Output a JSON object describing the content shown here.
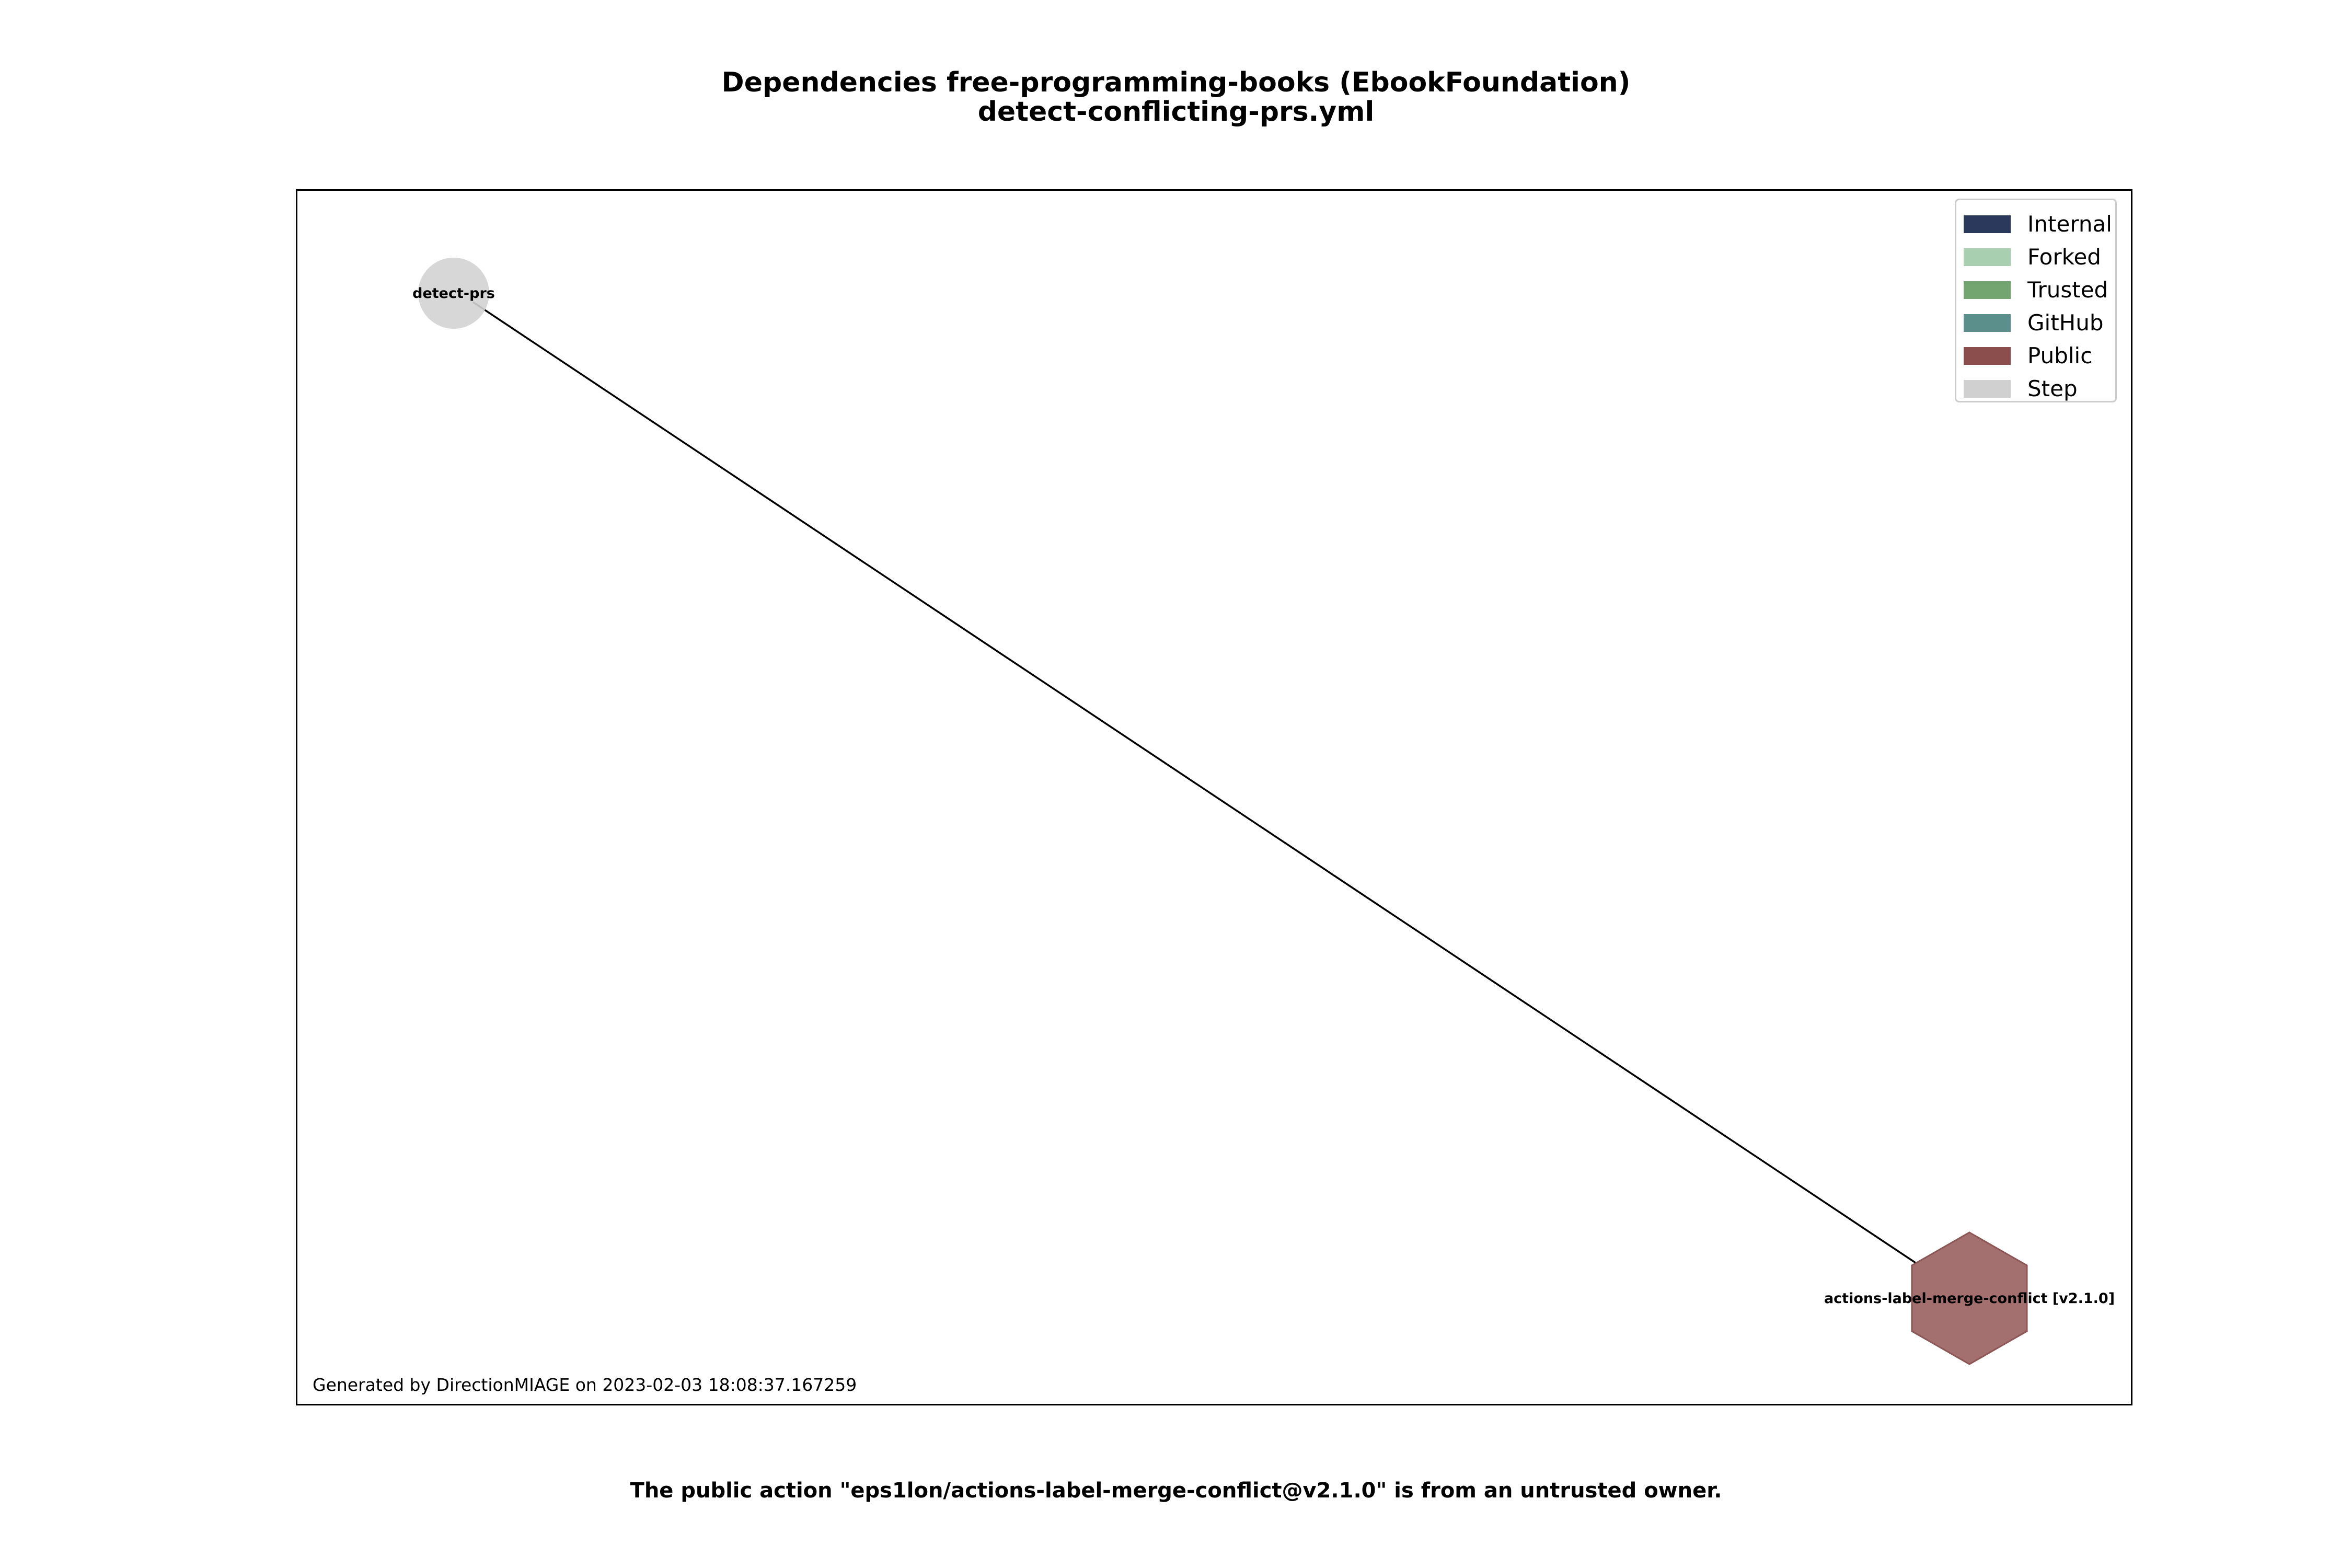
{
  "title": {
    "line1": "Dependencies free-programming-books (EbookFoundation)",
    "line2": "detect-conflicting-prs.yml"
  },
  "legend": {
    "items": [
      {
        "label": "Internal",
        "color": "#2b3a5c"
      },
      {
        "label": "Forked",
        "color": "#a9cfb1"
      },
      {
        "label": "Trusted",
        "color": "#72a56f"
      },
      {
        "label": "GitHub",
        "color": "#5b8f8c"
      },
      {
        "label": "Public",
        "color": "#8c4d4d"
      },
      {
        "label": "Step",
        "color": "#d0d0d0"
      }
    ]
  },
  "nodes": [
    {
      "id": "detect-prs",
      "label": "detect-prs",
      "kind": "Step",
      "shape": "circle",
      "color": "#d3d3d3"
    },
    {
      "id": "actions-label-merge-conflict",
      "label": "actions-label-merge-conflict [v2.1.0]",
      "kind": "Public",
      "shape": "hexagon",
      "color": "#a36f6f"
    }
  ],
  "edges": [
    {
      "from": "detect-prs",
      "to": "actions-label-merge-conflict"
    }
  ],
  "footer": "Generated by DirectionMIAGE on 2023-02-03 18:08:37.167259",
  "warning": "The public action \"eps1lon/actions-label-merge-conflict@v2.1.0\" is from an untrusted owner."
}
